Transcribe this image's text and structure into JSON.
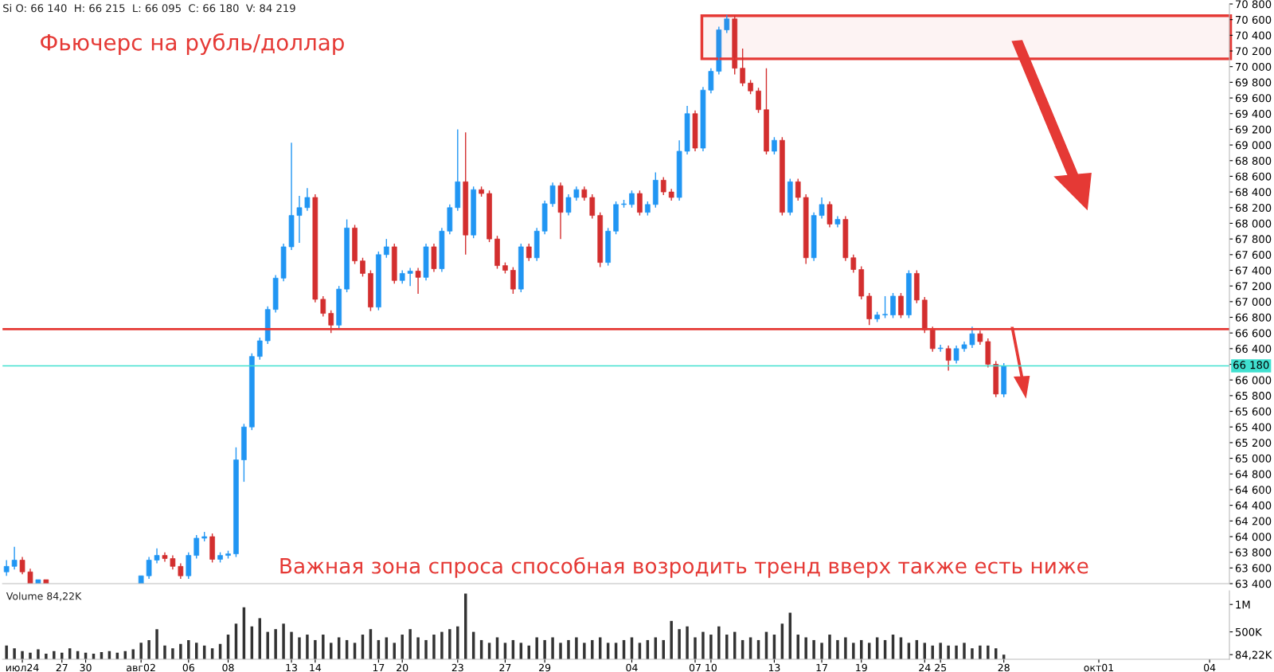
{
  "chart_data": [
    {
      "type": "candlestick",
      "title": "Фьючерс на рубль/доллар",
      "annotations": [
        "Si O: 66 140  H: 66 215  L: 66 095  C: 66 180  V: 84 219",
        "Важная зона спроса способная возродить тренд вверх также есть ниже"
      ],
      "categories": [
        null,
        null,
        null,
        null,
        null,
        null,
        null,
        null,
        null,
        null,
        null,
        null,
        null,
        null,
        null,
        null,
        null,
        null,
        null,
        null,
        null,
        null,
        null,
        null,
        null,
        null,
        null,
        null,
        null,
        null,
        null,
        null,
        null,
        null,
        null,
        null,
        null,
        null,
        null,
        null,
        null,
        null,
        null,
        null,
        null,
        null,
        null,
        null,
        null,
        null,
        null,
        null,
        null,
        null,
        null,
        null,
        null,
        null,
        null,
        null,
        null,
        null,
        null,
        null,
        null,
        null,
        null,
        null,
        null,
        null,
        null,
        null,
        null,
        null,
        null,
        null,
        null,
        null,
        null,
        null,
        null,
        null,
        null,
        null,
        null,
        null,
        null,
        null,
        null,
        null,
        null,
        null,
        null,
        null,
        null,
        null,
        null,
        null,
        null,
        null,
        null,
        null,
        null,
        null,
        null,
        null,
        null,
        null,
        null,
        null,
        null,
        null,
        null,
        null,
        null,
        null,
        null,
        null,
        null,
        null,
        null,
        null,
        null,
        null,
        null,
        null,
        null,
        null,
        null,
        null,
        null,
        null,
        null,
        null,
        null,
        null,
        null,
        null,
        null,
        null,
        null,
        null,
        null,
        null,
        null,
        null,
        null,
        null,
        null,
        null,
        null,
        null,
        null,
        null,
        null
      ],
      "ohlc": [
        [
          63550,
          63700,
          63500,
          63620
        ],
        [
          63620,
          63870,
          63580,
          63700
        ],
        [
          63700,
          63740,
          63520,
          63550
        ],
        [
          63550,
          63590,
          63400,
          63400
        ],
        [
          63400,
          63450,
          63400,
          63450
        ],
        [
          63450,
          63450,
          63400,
          63400
        ],
        null,
        null,
        null,
        null,
        null,
        null,
        null,
        null,
        null,
        null,
        null,
        [
          63400,
          63500,
          63400,
          63500
        ],
        [
          63500,
          63740,
          63460,
          63700
        ],
        [
          63700,
          63850,
          63660,
          63760
        ],
        [
          63760,
          63800,
          63680,
          63720
        ],
        [
          63720,
          63760,
          63580,
          63620
        ],
        [
          63620,
          63660,
          63460,
          63500
        ],
        [
          63500,
          63800,
          63460,
          63760
        ],
        [
          63760,
          64020,
          63720,
          63980
        ],
        [
          63980,
          64060,
          63940,
          64000
        ],
        [
          64000,
          64040,
          63670,
          63710
        ],
        [
          63710,
          63800,
          63670,
          63760
        ],
        [
          63760,
          63820,
          63720,
          63780
        ],
        [
          63780,
          65140,
          63740,
          64980
        ],
        [
          64980,
          65440,
          64700,
          65400
        ],
        [
          65400,
          66340,
          65360,
          66300
        ],
        [
          66300,
          66540,
          66260,
          66500
        ],
        [
          66500,
          66940,
          66460,
          66900
        ],
        [
          66900,
          67340,
          66860,
          67300
        ],
        [
          67300,
          67740,
          67260,
          67700
        ],
        [
          67700,
          69030,
          67660,
          68100
        ],
        [
          68100,
          68350,
          67750,
          68200
        ],
        [
          68200,
          68450,
          68160,
          68330
        ],
        [
          68330,
          68370,
          66990,
          67030
        ],
        [
          67030,
          67070,
          66810,
          66850
        ],
        [
          66850,
          66890,
          66600,
          66700
        ],
        [
          66700,
          67200,
          66660,
          67160
        ],
        [
          67160,
          68050,
          67120,
          67940
        ],
        [
          67940,
          67980,
          67480,
          67520
        ],
        [
          67520,
          67560,
          67320,
          67360
        ],
        [
          67360,
          67400,
          66880,
          66930
        ],
        [
          66930,
          67640,
          66890,
          67600
        ],
        [
          67600,
          67800,
          67560,
          67700
        ],
        [
          67700,
          67740,
          67230,
          67270
        ],
        [
          67270,
          67400,
          67230,
          67360
        ],
        [
          67360,
          67430,
          67200,
          67390
        ],
        [
          67390,
          67430,
          67100,
          67310
        ],
        [
          67310,
          67740,
          67270,
          67700
        ],
        [
          67700,
          67740,
          67380,
          67420
        ],
        [
          67420,
          67940,
          67380,
          67900
        ],
        [
          67900,
          68240,
          67860,
          68200
        ],
        [
          68200,
          69200,
          68160,
          68530
        ],
        [
          68530,
          69160,
          67600,
          67850
        ],
        [
          67850,
          68470,
          67810,
          68430
        ],
        [
          68430,
          68470,
          68340,
          68380
        ],
        [
          68380,
          68420,
          67760,
          67800
        ],
        [
          67800,
          67840,
          67420,
          67460
        ],
        [
          67460,
          67500,
          67360,
          67400
        ],
        [
          67400,
          67440,
          67100,
          67160
        ],
        [
          67160,
          67740,
          67120,
          67700
        ],
        [
          67700,
          67740,
          67520,
          67560
        ],
        [
          67560,
          67940,
          67520,
          67900
        ],
        [
          67900,
          68290,
          67860,
          68250
        ],
        [
          68250,
          68520,
          68210,
          68480
        ],
        [
          68480,
          68520,
          67800,
          68140
        ],
        [
          68140,
          68370,
          68100,
          68330
        ],
        [
          68330,
          68470,
          68290,
          68430
        ],
        [
          68430,
          68470,
          68290,
          68330
        ],
        [
          68330,
          68370,
          68060,
          68100
        ],
        [
          68100,
          68140,
          67440,
          67500
        ],
        [
          67500,
          67940,
          67460,
          67900
        ],
        [
          67900,
          68280,
          67860,
          68240
        ],
        [
          68240,
          68300,
          68200,
          68240
        ],
        [
          68240,
          68420,
          68200,
          68380
        ],
        [
          68380,
          68420,
          68100,
          68140
        ],
        [
          68140,
          68280,
          68100,
          68240
        ],
        [
          68240,
          68650,
          68200,
          68550
        ],
        [
          68550,
          68590,
          68360,
          68400
        ],
        [
          68400,
          68440,
          68290,
          68330
        ],
        [
          68330,
          69060,
          68290,
          68920
        ],
        [
          68920,
          69500,
          68880,
          69400
        ],
        [
          69400,
          69440,
          68920,
          68960
        ],
        [
          68960,
          69740,
          68920,
          69700
        ],
        [
          69700,
          69980,
          69660,
          69940
        ],
        [
          69940,
          70510,
          69900,
          70470
        ],
        [
          70470,
          70660,
          70430,
          70610
        ],
        [
          70610,
          70650,
          69900,
          69980
        ],
        [
          69980,
          70230,
          69750,
          69790
        ],
        [
          69790,
          69830,
          69650,
          69690
        ],
        [
          69690,
          69730,
          69410,
          69450
        ],
        [
          69450,
          69980,
          68880,
          68920
        ],
        [
          68920,
          69100,
          68880,
          69060
        ],
        [
          69060,
          69100,
          68100,
          68140
        ],
        [
          68140,
          68570,
          68100,
          68530
        ],
        [
          68530,
          68570,
          68290,
          68330
        ],
        [
          68330,
          68370,
          67480,
          67560
        ],
        [
          67560,
          68140,
          67520,
          68100
        ],
        [
          68100,
          68330,
          68060,
          68240
        ],
        [
          68240,
          68280,
          67950,
          67990
        ],
        [
          67990,
          68090,
          67950,
          68050
        ],
        [
          68050,
          68090,
          67520,
          67560
        ],
        [
          67560,
          67600,
          67370,
          67410
        ],
        [
          67410,
          67450,
          67030,
          67070
        ],
        [
          67070,
          67110,
          66700,
          66780
        ],
        [
          66780,
          66870,
          66740,
          66830
        ],
        [
          66830,
          67070,
          66790,
          66830
        ],
        [
          66830,
          67110,
          66790,
          67070
        ],
        [
          67070,
          67110,
          66790,
          66830
        ],
        [
          66830,
          67400,
          66790,
          67360
        ],
        [
          67360,
          67400,
          66980,
          67020
        ],
        [
          67020,
          67060,
          66600,
          66640
        ],
        [
          66640,
          66680,
          66360,
          66400
        ],
        [
          66400,
          66450,
          66360,
          66400
        ],
        [
          66400,
          66440,
          66120,
          66250
        ],
        [
          66250,
          66440,
          66210,
          66400
        ],
        [
          66400,
          66490,
          66360,
          66450
        ],
        [
          66450,
          66680,
          66410,
          66590
        ],
        [
          66590,
          66630,
          66450,
          66490
        ],
        [
          66490,
          66530,
          66160,
          66200
        ],
        [
          66200,
          66240,
          65780,
          65820
        ],
        [
          65820,
          66215,
          65780,
          66180
        ],
        null,
        null,
        null,
        null,
        null,
        null,
        null,
        null,
        null,
        null,
        null,
        null,
        null,
        null,
        null,
        null,
        null,
        null,
        null,
        null,
        null,
        null,
        null,
        null,
        null,
        null,
        null,
        null
      ],
      "colors": [
        "#2196f3",
        "#2196f3",
        "#d32f2f",
        "#d32f2f",
        "#2196f3",
        "#d32f2f",
        null,
        null,
        null,
        null,
        null,
        null,
        null,
        null,
        null,
        null,
        null,
        "#2196f3",
        "#2196f3",
        "#2196f3",
        "#d32f2f",
        "#d32f2f",
        "#d32f2f",
        "#2196f3",
        "#2196f3",
        "#2196f3",
        "#d32f2f",
        "#2196f3",
        "#2196f3",
        "#2196f3",
        "#2196f3",
        "#2196f3",
        "#2196f3",
        "#2196f3",
        "#2196f3",
        "#2196f3",
        "#2196f3",
        "#2196f3",
        "#2196f3",
        "#d32f2f",
        "#d32f2f",
        "#d32f2f",
        "#2196f3",
        "#2196f3",
        "#d32f2f",
        "#d32f2f",
        "#d32f2f",
        "#2196f3",
        "#2196f3",
        "#d32f2f",
        "#2196f3",
        "#2196f3",
        "#d32f2f",
        "#2196f3",
        "#d32f2f",
        "#2196f3",
        "#2196f3",
        "#2196f3",
        "#d32f2f",
        "#2196f3",
        "#d32f2f",
        "#d32f2f",
        "#d32f2f",
        "#d32f2f",
        "#d32f2f",
        "#2196f3",
        "#d32f2f",
        "#2196f3",
        "#2196f3",
        "#2196f3",
        "#d32f2f",
        "#2196f3",
        "#2196f3",
        "#d32f2f",
        "#d32f2f",
        "#d32f2f",
        "#2196f3",
        "#2196f3",
        "#2196f3",
        "#2196f3",
        "#d32f2f",
        "#2196f3",
        "#2196f3",
        "#d32f2f",
        "#d32f2f",
        "#2196f3",
        "#2196f3",
        "#d32f2f",
        "#2196f3",
        "#2196f3",
        "#2196f3",
        "#2196f3",
        "#d32f2f",
        "#d32f2f",
        "#d32f2f",
        "#d32f2f",
        "#d32f2f",
        "#2196f3",
        "#d32f2f",
        "#2196f3",
        "#d32f2f",
        "#d32f2f",
        "#2196f3",
        "#2196f3",
        "#d32f2f",
        "#2196f3",
        "#d32f2f",
        "#d32f2f",
        "#d32f2f",
        "#d32f2f",
        "#2196f3",
        "#2196f3",
        "#2196f3",
        "#d32f2f",
        "#2196f3",
        "#d32f2f",
        "#d32f2f",
        "#d32f2f",
        "#2196f3",
        "#d32f2f",
        "#2196f3",
        "#2196f3",
        "#2196f3",
        "#d32f2f",
        "#d32f2f",
        "#d32f2f",
        "#2196f3",
        null,
        null,
        null,
        null,
        null,
        null,
        null,
        null,
        null,
        null,
        null,
        null,
        null,
        null,
        null,
        null,
        null,
        null,
        null,
        null,
        null,
        null,
        null,
        null,
        null,
        null,
        null,
        null
      ],
      "ylim": [
        63400,
        70800
      ],
      "yticks": [
        {
          "value": 63400,
          "label": "63 400"
        },
        {
          "value": 63600,
          "label": "63 600"
        },
        {
          "value": 63800,
          "label": "63 800"
        },
        {
          "value": 64000,
          "label": "64 000"
        },
        {
          "value": 64200,
          "label": "64 200"
        },
        {
          "value": 64400,
          "label": "64 400"
        },
        {
          "value": 64600,
          "label": "64 600"
        },
        {
          "value": 64800,
          "label": "64 800"
        },
        {
          "value": 65000,
          "label": "65 000"
        },
        {
          "value": 65200,
          "label": "65 200"
        },
        {
          "value": 65400,
          "label": "65 400"
        },
        {
          "value": 65600,
          "label": "65 600"
        },
        {
          "value": 65800,
          "label": "65 800"
        },
        {
          "value": 66000,
          "label": "66 000"
        },
        {
          "value": 66200,
          "label": null
        },
        {
          "value": 66400,
          "label": "66 400"
        },
        {
          "value": 66600,
          "label": "66 600"
        },
        {
          "value": 66800,
          "label": "66 800"
        },
        {
          "value": 67000,
          "label": "67 000"
        },
        {
          "value": 67200,
          "label": "67 200"
        },
        {
          "value": 67400,
          "label": "67 400"
        },
        {
          "value": 67600,
          "label": "67 600"
        },
        {
          "value": 67800,
          "label": "67 800"
        },
        {
          "value": 68000,
          "label": "68 000"
        },
        {
          "value": 68200,
          "label": "68 200"
        },
        {
          "value": 68400,
          "label": "68 400"
        },
        {
          "value": 68600,
          "label": "68 600"
        },
        {
          "value": 68800,
          "label": "68 800"
        },
        {
          "value": 69000,
          "label": "69 000"
        },
        {
          "value": 69200,
          "label": "69 200"
        },
        {
          "value": 69400,
          "label": "69 400"
        },
        {
          "value": 69600,
          "label": "69 600"
        },
        {
          "value": 69800,
          "label": "69 800"
        },
        {
          "value": 70000,
          "label": "70 000"
        },
        {
          "value": 70200,
          "label": "70 200"
        },
        {
          "value": 70400,
          "label": "70 400"
        },
        {
          "value": 70600,
          "label": "70 600"
        },
        {
          "value": 70800,
          "label": "70 800"
        }
      ],
      "ref_lines": [
        {
          "axis": "y",
          "value": 66180,
          "label": "66 180",
          "color": "#40e0d0"
        },
        {
          "axis": "y",
          "value": 66650,
          "label": null,
          "color": "#e53935"
        }
      ],
      "bands": [
        {
          "axis": "y",
          "from": 70100,
          "to": 70650,
          "label": null,
          "color": "#e53935"
        }
      ],
      "tick_labels": "y",
      "grid": false
    },
    {
      "type": "bar",
      "annotations": [
        "Volume 84,22K"
      ],
      "categories": [
        null,
        null,
        "июл24",
        null,
        null,
        null,
        null,
        "27",
        null,
        null,
        "30",
        null,
        null,
        null,
        null,
        null,
        null,
        "авг02",
        null,
        null,
        null,
        null,
        null,
        "06",
        null,
        null,
        null,
        null,
        "08",
        null,
        null,
        null,
        null,
        null,
        null,
        null,
        "13",
        null,
        null,
        "14",
        null,
        null,
        null,
        null,
        null,
        null,
        null,
        "17",
        null,
        null,
        "20",
        null,
        null,
        null,
        null,
        null,
        null,
        "23",
        null,
        null,
        null,
        null,
        null,
        "27",
        null,
        null,
        null,
        null,
        "29",
        null,
        null,
        null,
        null,
        null,
        null,
        null,
        null,
        null,
        null,
        "04",
        null,
        null,
        null,
        null,
        null,
        null,
        null,
        "07",
        null,
        "10",
        null,
        null,
        null,
        null,
        null,
        null,
        null,
        "13",
        null,
        null,
        null,
        null,
        null,
        "17",
        null,
        null,
        null,
        null,
        "19",
        null,
        null,
        null,
        null,
        null,
        null,
        null,
        "24",
        null,
        "25",
        null,
        null,
        null,
        null,
        null,
        null,
        null,
        "28",
        null,
        null,
        null,
        null,
        null,
        null,
        null,
        null,
        null,
        null,
        null,
        "окт01",
        null,
        null,
        null,
        null,
        null,
        null,
        null,
        null,
        null,
        null,
        null,
        null,
        null,
        "04",
        null,
        null
      ],
      "values": [
        250000,
        200000,
        150000,
        120000,
        180000,
        100000,
        150000,
        120000,
        200000,
        150000,
        120000,
        100000,
        130000,
        150000,
        120000,
        150000,
        180000,
        300000,
        350000,
        550000,
        250000,
        200000,
        280000,
        350000,
        300000,
        250000,
        200000,
        280000,
        450000,
        650000,
        950000,
        600000,
        750000,
        500000,
        550000,
        650000,
        500000,
        400000,
        450000,
        350000,
        450000,
        300000,
        400000,
        350000,
        300000,
        450000,
        550000,
        350000,
        400000,
        300000,
        450000,
        550000,
        400000,
        350000,
        450000,
        500000,
        550000,
        600000,
        1200000,
        500000,
        350000,
        300000,
        400000,
        300000,
        350000,
        300000,
        250000,
        400000,
        350000,
        400000,
        300000,
        350000,
        400000,
        300000,
        350000,
        400000,
        300000,
        300000,
        350000,
        400000,
        300000,
        350000,
        400000,
        350000,
        700000,
        550000,
        600000,
        400000,
        500000,
        450000,
        600000,
        450000,
        500000,
        350000,
        400000,
        350000,
        500000,
        450000,
        650000,
        850000,
        450000,
        400000,
        350000,
        300000,
        450000,
        350000,
        400000,
        300000,
        350000,
        300000,
        400000,
        350000,
        450000,
        400000,
        300000,
        350000,
        300000,
        250000,
        300000,
        250000,
        250000,
        300000,
        200000,
        250000,
        250000,
        200000,
        84220,
        null,
        null,
        null,
        null,
        null,
        null,
        null,
        null,
        null,
        null,
        null,
        null,
        null,
        null,
        null,
        null,
        null,
        null,
        null,
        null,
        null,
        null,
        null,
        null,
        null,
        null,
        null,
        null
      ],
      "color": "#333333",
      "ylim": [
        0,
        1250000
      ],
      "yticks": [
        {
          "value": 84220,
          "label": "84,22K"
        },
        {
          "value": 500000,
          "label": "500K"
        },
        {
          "value": 1000000,
          "label": "1M"
        }
      ],
      "grid": false
    }
  ]
}
